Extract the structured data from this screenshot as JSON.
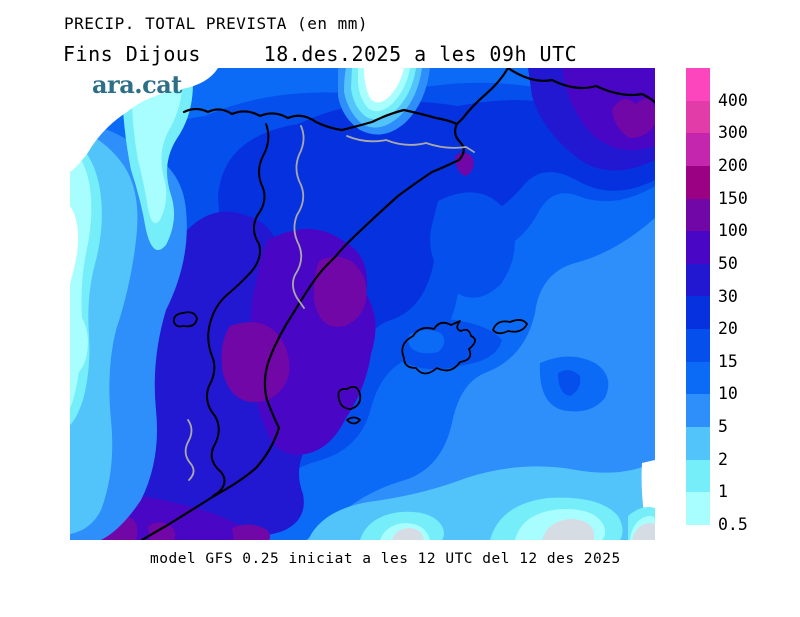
{
  "header": {
    "line1": "PRECIP. TOTAL PREVISTA (en mm)",
    "line2": "Fins Dijous     18.des.2025 a les 09h UTC"
  },
  "watermark": {
    "text": "ara.cat",
    "color": "#2E6F88"
  },
  "footer": {
    "caption": "model GFS 0.25 iniciat a les 12 UTC del 12 des 2025"
  },
  "legend": {
    "unit": "mm",
    "labels_top_to_bottom": [
      "400",
      "300",
      "200",
      "150",
      "100",
      "50",
      "30",
      "20",
      "15",
      "10",
      "5",
      "2",
      "1",
      "0.5"
    ],
    "segment_colors_top_to_bottom": [
      "#FB46BE",
      "#E23CA8",
      "#C426AE",
      "#9A0283",
      "#7007A6",
      "#4A06C5",
      "#2218D2",
      "#0631DF",
      "#0550EC",
      "#0B6BF7",
      "#2E8FFA",
      "#52C4FA",
      "#76EEFA",
      "#A8FEFE"
    ],
    "level_colors": {
      "gt400": "#FB46BE",
      "300-400": "#E23CA8",
      "200-300": "#C426AE",
      "150-200": "#9A0283",
      "100-150": "#7007A6",
      "50-100": "#4A06C5",
      "30-50": "#2218D2",
      "20-30": "#0631DF",
      "15-20": "#0550EC",
      "10-15": "#0B6BF7",
      "5-10": "#2E8FFA",
      "2-5": "#52C4FA",
      "1-2": "#76EEFA",
      "0.5-1": "#A8FEFE",
      "trace": "#D6DCE4",
      "none": "#FFFFFF"
    },
    "line_colors": {
      "coastline": "#000000",
      "admin_border": "#A9A9A9"
    }
  },
  "chart_data": {
    "type": "heatmap",
    "title": "PRECIP. TOTAL PREVISTA (en mm)",
    "subtitle": "Fins Dijous     18.des.2025 a les 09h UTC",
    "annotation": "model GFS 0.25 iniciat a les 12 UTC del 12 des 2025",
    "legend_position": "right",
    "scale_mm": [
      0.5,
      1,
      2,
      5,
      10,
      15,
      20,
      30,
      50,
      100,
      150,
      200,
      300,
      400
    ],
    "scale_colors_low_to_high": [
      "#A8FEFE",
      "#76EEFA",
      "#52C4FA",
      "#2E8FFA",
      "#0B6BF7",
      "#0550EC",
      "#0631DF",
      "#2218D2",
      "#4A06C5",
      "#7007A6",
      "#9A0283",
      "#C426AE",
      "#E23CA8",
      "#FB46BE"
    ],
    "map_max_band_mm": "100-150",
    "map_max_areas": "inland east coast (Ebre-Castello area), far north-east corner, south-west corner",
    "map_min_band_mm": "below 0.5",
    "map_min_areas": "north-west corner, top-centre, south-east edge"
  }
}
